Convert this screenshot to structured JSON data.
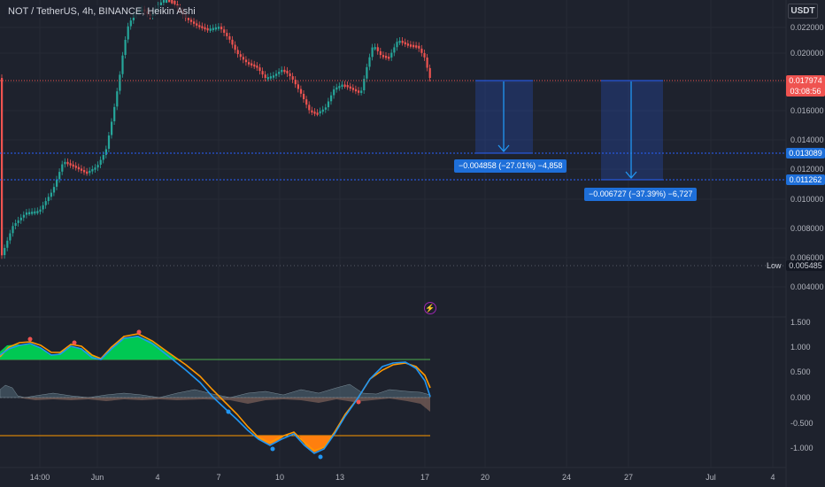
{
  "header": {
    "symbol_line": "NOT / TetherUS, 4h, BINANCE, Heikin Ashi",
    "currency": "USDT"
  },
  "price_axis": [
    "0.022000",
    "0.020000",
    "0.018000",
    "0.016000",
    "0.014000",
    "0.012000",
    "0.010000",
    "0.008000",
    "0.006000",
    "0.004000"
  ],
  "indicator_axis": [
    "1.500",
    "1.000",
    "0.500",
    "0.000",
    "-0.500",
    "-1.000"
  ],
  "time_axis": [
    "14:00",
    "Jun",
    "4",
    "7",
    "10",
    "13",
    "17",
    "20",
    "24",
    "27",
    "Jul",
    "4"
  ],
  "price_tags": {
    "current": {
      "value": "0.017974",
      "countdown": "03:08:56"
    },
    "level1": "0.013089",
    "level2": "0.011262",
    "low_label": "Low",
    "low_value": "0.005485"
  },
  "measures": [
    {
      "text": "−0.004858 (−27.01%) −4,858"
    },
    {
      "text": "−0.006727 (−37.39%) −6,727"
    }
  ],
  "icons": {
    "alert": "lightning-bolt-icon"
  },
  "colors": {
    "background": "#1e222d",
    "bull": "#26a69a",
    "bear": "#ef5350",
    "current_line": "#ef5350",
    "level_line": "#2962ff",
    "measure": "#1e6fd9",
    "osc_fast": "#2196f3",
    "osc_slow": "#ff9800",
    "fill_up": "#00c853",
    "fill_down": "#ff7f0e"
  }
}
